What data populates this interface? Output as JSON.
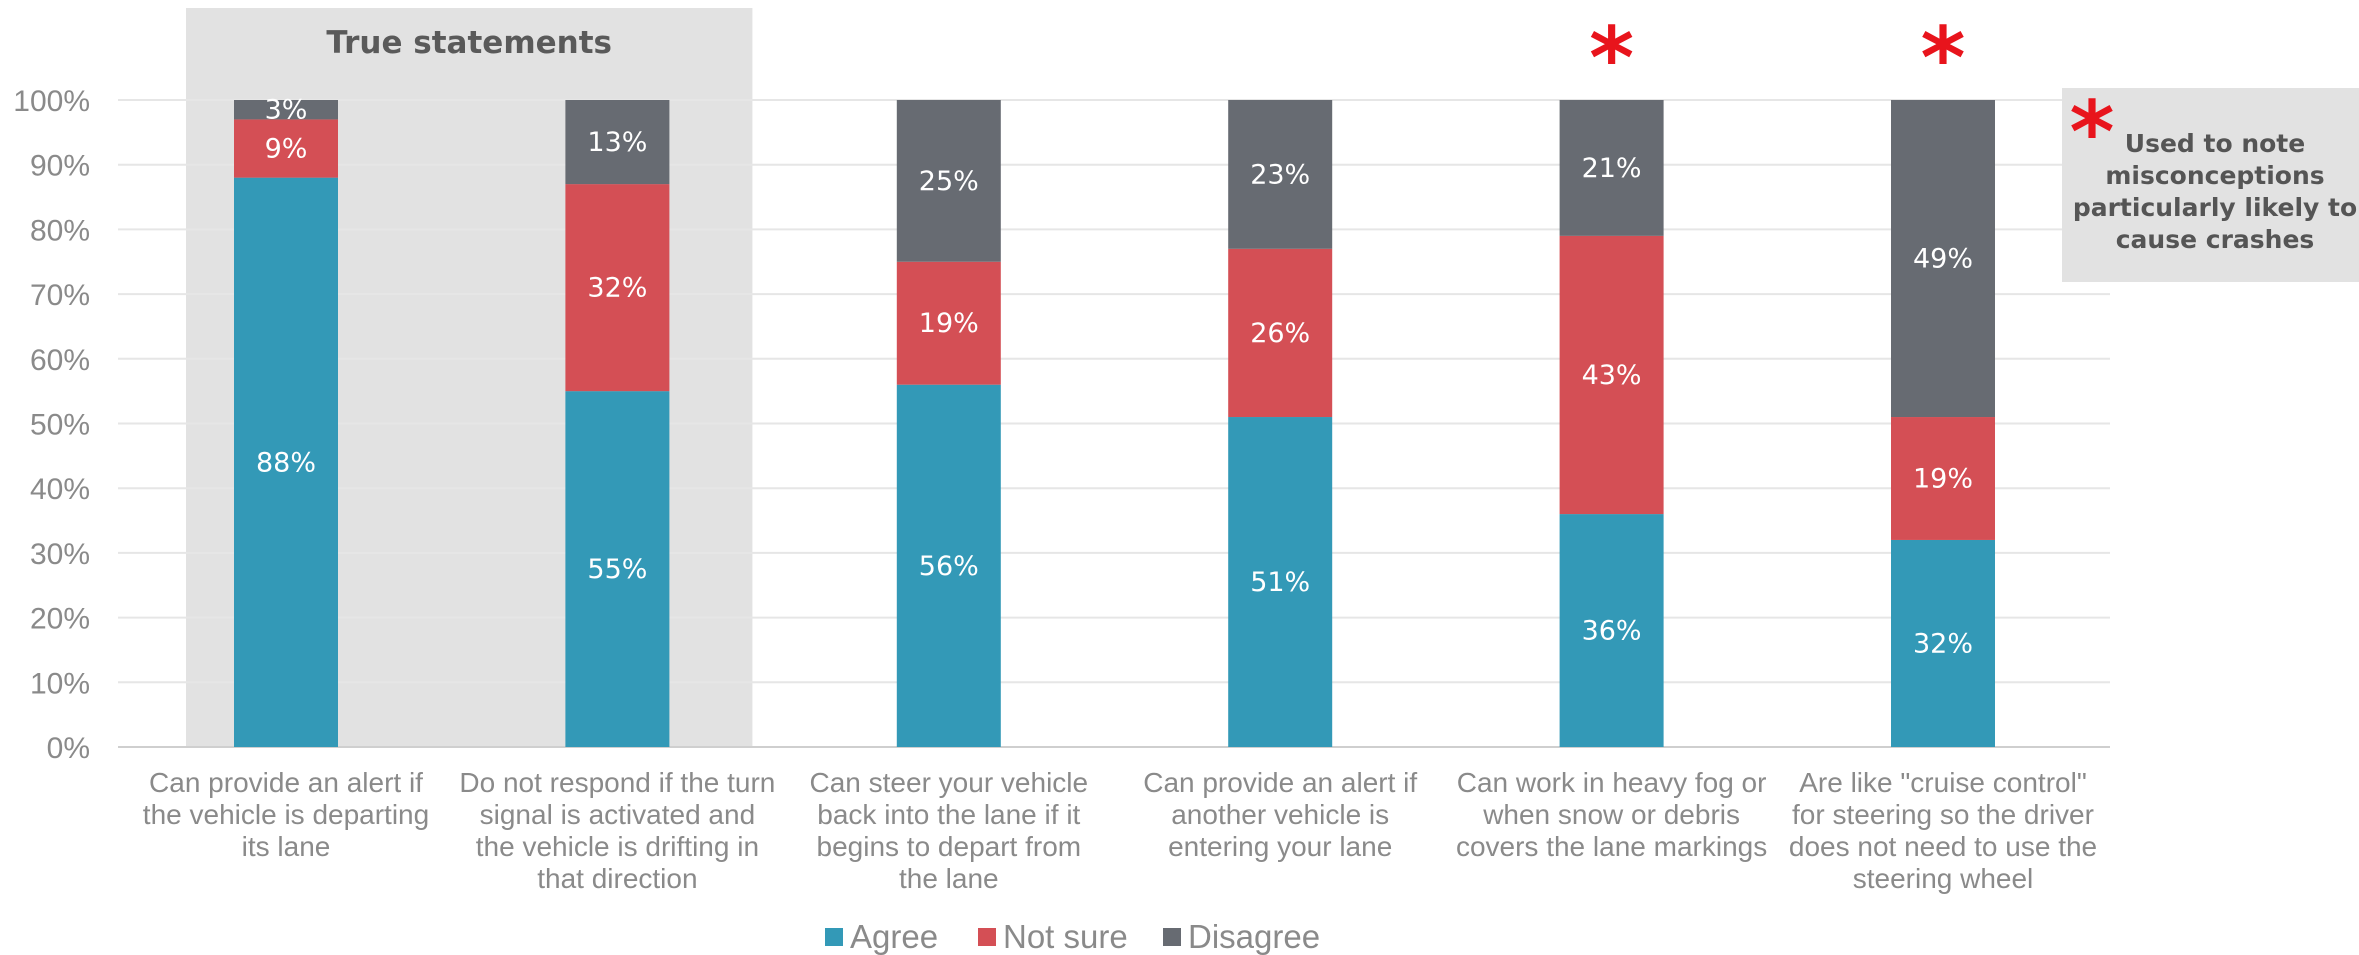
{
  "chart_data": {
    "type": "bar",
    "stacked": true,
    "ylim": [
      0,
      100
    ],
    "y_ticks": [
      "0%",
      "10%",
      "20%",
      "30%",
      "40%",
      "50%",
      "60%",
      "70%",
      "80%",
      "90%",
      "100%"
    ],
    "grid": true,
    "categories": [
      [
        "Can provide an alert if",
        "the vehicle is departing",
        "its lane"
      ],
      [
        "Do not respond if the turn",
        "signal is activated and",
        "the vehicle is drifting in",
        "that direction"
      ],
      [
        "Can steer your vehicle",
        "back into the lane if it",
        "begins to depart from",
        "the lane"
      ],
      [
        "Can provide an alert if",
        "another vehicle is",
        "entering your lane"
      ],
      [
        "Can work in heavy fog or",
        "when snow or debris",
        "covers the lane markings"
      ],
      [
        "Are like \"cruise control\"",
        "for steering so the driver",
        "does not need to use the",
        "steering wheel"
      ]
    ],
    "series": [
      {
        "name": "Agree",
        "color": "#3399b7",
        "values": [
          88,
          55,
          56,
          51,
          36,
          32
        ]
      },
      {
        "name": "Not sure",
        "color": "#d44f55",
        "values": [
          9,
          32,
          19,
          26,
          43,
          19
        ]
      },
      {
        "name": "Disagree",
        "color": "#676b72",
        "values": [
          3,
          13,
          25,
          23,
          21,
          49
        ]
      }
    ],
    "highlight": {
      "label": "True statements",
      "categories": [
        0,
        1
      ],
      "color": "#e2e2e2"
    },
    "misconception_marks": {
      "symbol": "*",
      "color": "#e8141c",
      "categories": [
        4,
        5
      ]
    },
    "legend": {
      "position": "bottom"
    }
  },
  "note": {
    "symbol": "*",
    "lines": [
      "Used to note",
      "misconceptions",
      "particularly likely to",
      "cause crashes"
    ],
    "bg_color": "#e2e2e2"
  }
}
